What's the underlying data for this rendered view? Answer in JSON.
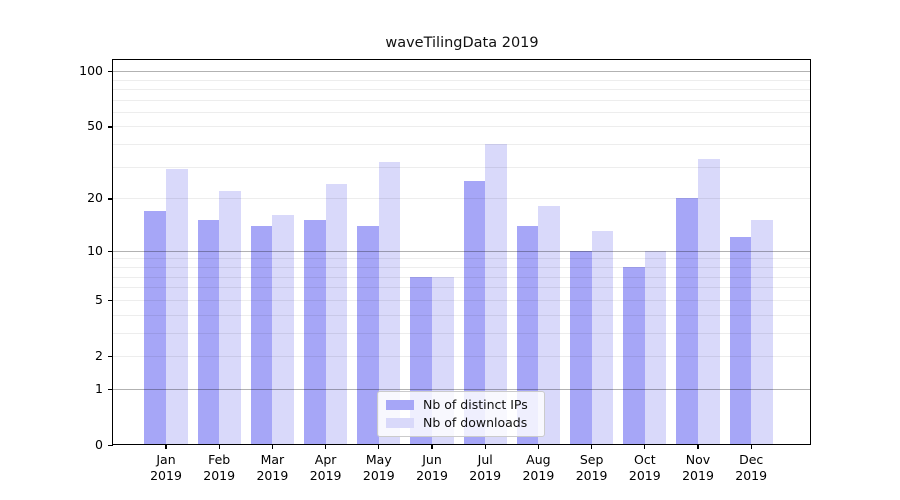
{
  "chart_data": {
    "type": "bar",
    "title": "waveTilingData 2019",
    "year_label": "2019",
    "categories": [
      "Jan",
      "Feb",
      "Mar",
      "Apr",
      "May",
      "Jun",
      "Jul",
      "Aug",
      "Sep",
      "Oct",
      "Nov",
      "Dec"
    ],
    "series": [
      {
        "name": "Nb of distinct IPs",
        "color": "#a6a6f7",
        "values": [
          17,
          15,
          14,
          15,
          14,
          7,
          25,
          14,
          10,
          8,
          20,
          12
        ]
      },
      {
        "name": "Nb of downloads",
        "color": "#d9d9fa",
        "values": [
          29,
          22,
          16,
          24,
          32,
          7,
          40,
          18,
          13,
          10,
          33,
          15
        ]
      }
    ],
    "y_scale": "log1p",
    "y_axis_ticks": [
      100,
      50,
      20,
      10,
      5,
      2,
      1,
      0
    ],
    "y_dark_gridlines": [
      1,
      10,
      100
    ],
    "y_light_gridlines": [
      2,
      5,
      20,
      50
    ],
    "y_minor_gridlines": [
      3,
      4,
      6,
      7,
      8,
      9,
      30,
      40,
      60,
      70,
      80,
      90
    ],
    "ylim": [
      0,
      115
    ],
    "grid": "on",
    "legend_position": "bottom-center",
    "xlabel": "",
    "ylabel": ""
  }
}
